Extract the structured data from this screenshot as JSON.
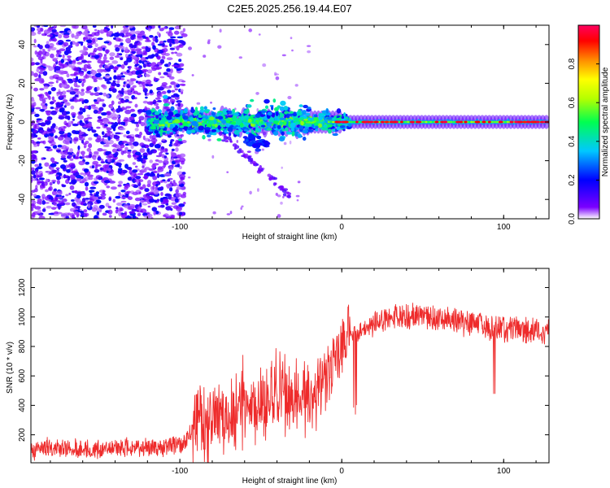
{
  "title": "C2E5.2025.256.19.44.E07",
  "colors": {
    "snr_line": "#ee2b2b",
    "colorscale": [
      "#ffffff",
      "#7b00ff",
      "#0000ff",
      "#00c8ff",
      "#00ff50",
      "#b4ff00",
      "#ffff00",
      "#ff8c00",
      "#ff0000",
      "#ff0060"
    ]
  },
  "chart_data": [
    {
      "type": "heatmap",
      "name": "spectrogram",
      "xlabel": "Height of straight line (km)",
      "ylabel": "Frequency (Hz)",
      "xlim": [
        -192,
        128
      ],
      "ylim": [
        -50,
        50
      ],
      "xticks": [
        -100,
        0,
        100
      ],
      "xtick_labels": [
        "-100",
        "0",
        "100"
      ],
      "yticks": [
        -40,
        -20,
        0,
        20,
        40
      ],
      "ytick_labels": [
        "-40",
        "-20",
        "0",
        "20",
        "40"
      ],
      "colorbar": {
        "label": "Normalized spectral amplitude",
        "range": [
          0,
          1
        ],
        "ticks": [
          0,
          0.2,
          0.4,
          0.6,
          0.8
        ],
        "tick_labels": [
          "0.0",
          "0.2",
          "0.4",
          "0.6",
          "0.8"
        ]
      },
      "features": {
        "noise_region_x": [
          -192,
          -97
        ],
        "signal_start_x": -120,
        "line_center_hz": 0,
        "descending_branch": {
          "x": [
            -75,
            -30
          ],
          "y": [
            -5,
            -40
          ]
        }
      }
    },
    {
      "type": "line",
      "name": "snr",
      "xlabel": "Height of straight line (km)",
      "ylabel": "SNR (10 * v/v)",
      "xlim": [
        -192,
        128
      ],
      "ylim": [
        10,
        1330
      ],
      "xticks": [
        -100,
        0,
        100
      ],
      "xtick_labels": [
        "-100",
        "0",
        "100"
      ],
      "yticks": [
        200,
        400,
        600,
        800,
        1000,
        1200
      ],
      "ytick_labels": [
        "200",
        "400",
        "600",
        "800",
        "1000",
        "1200"
      ],
      "series": [
        {
          "name": "SNR",
          "x": [
            -192,
            -180,
            -160,
            -140,
            -120,
            -110,
            -100,
            -95,
            -90,
            -85,
            -80,
            -70,
            -60,
            -50,
            -40,
            -30,
            -20,
            -15,
            -10,
            -5,
            0,
            3,
            6,
            8,
            10,
            15,
            20,
            30,
            40,
            50,
            60,
            70,
            80,
            90,
            95,
            100,
            110,
            120,
            128
          ],
          "y": [
            100,
            110,
            100,
            105,
            115,
            120,
            130,
            180,
            300,
            290,
            300,
            350,
            380,
            420,
            430,
            450,
            480,
            500,
            560,
            650,
            850,
            870,
            900,
            880,
            910,
            930,
            960,
            990,
            1010,
            1000,
            990,
            980,
            960,
            940,
            930,
            920,
            910,
            900,
            880
          ]
        }
      ]
    }
  ]
}
